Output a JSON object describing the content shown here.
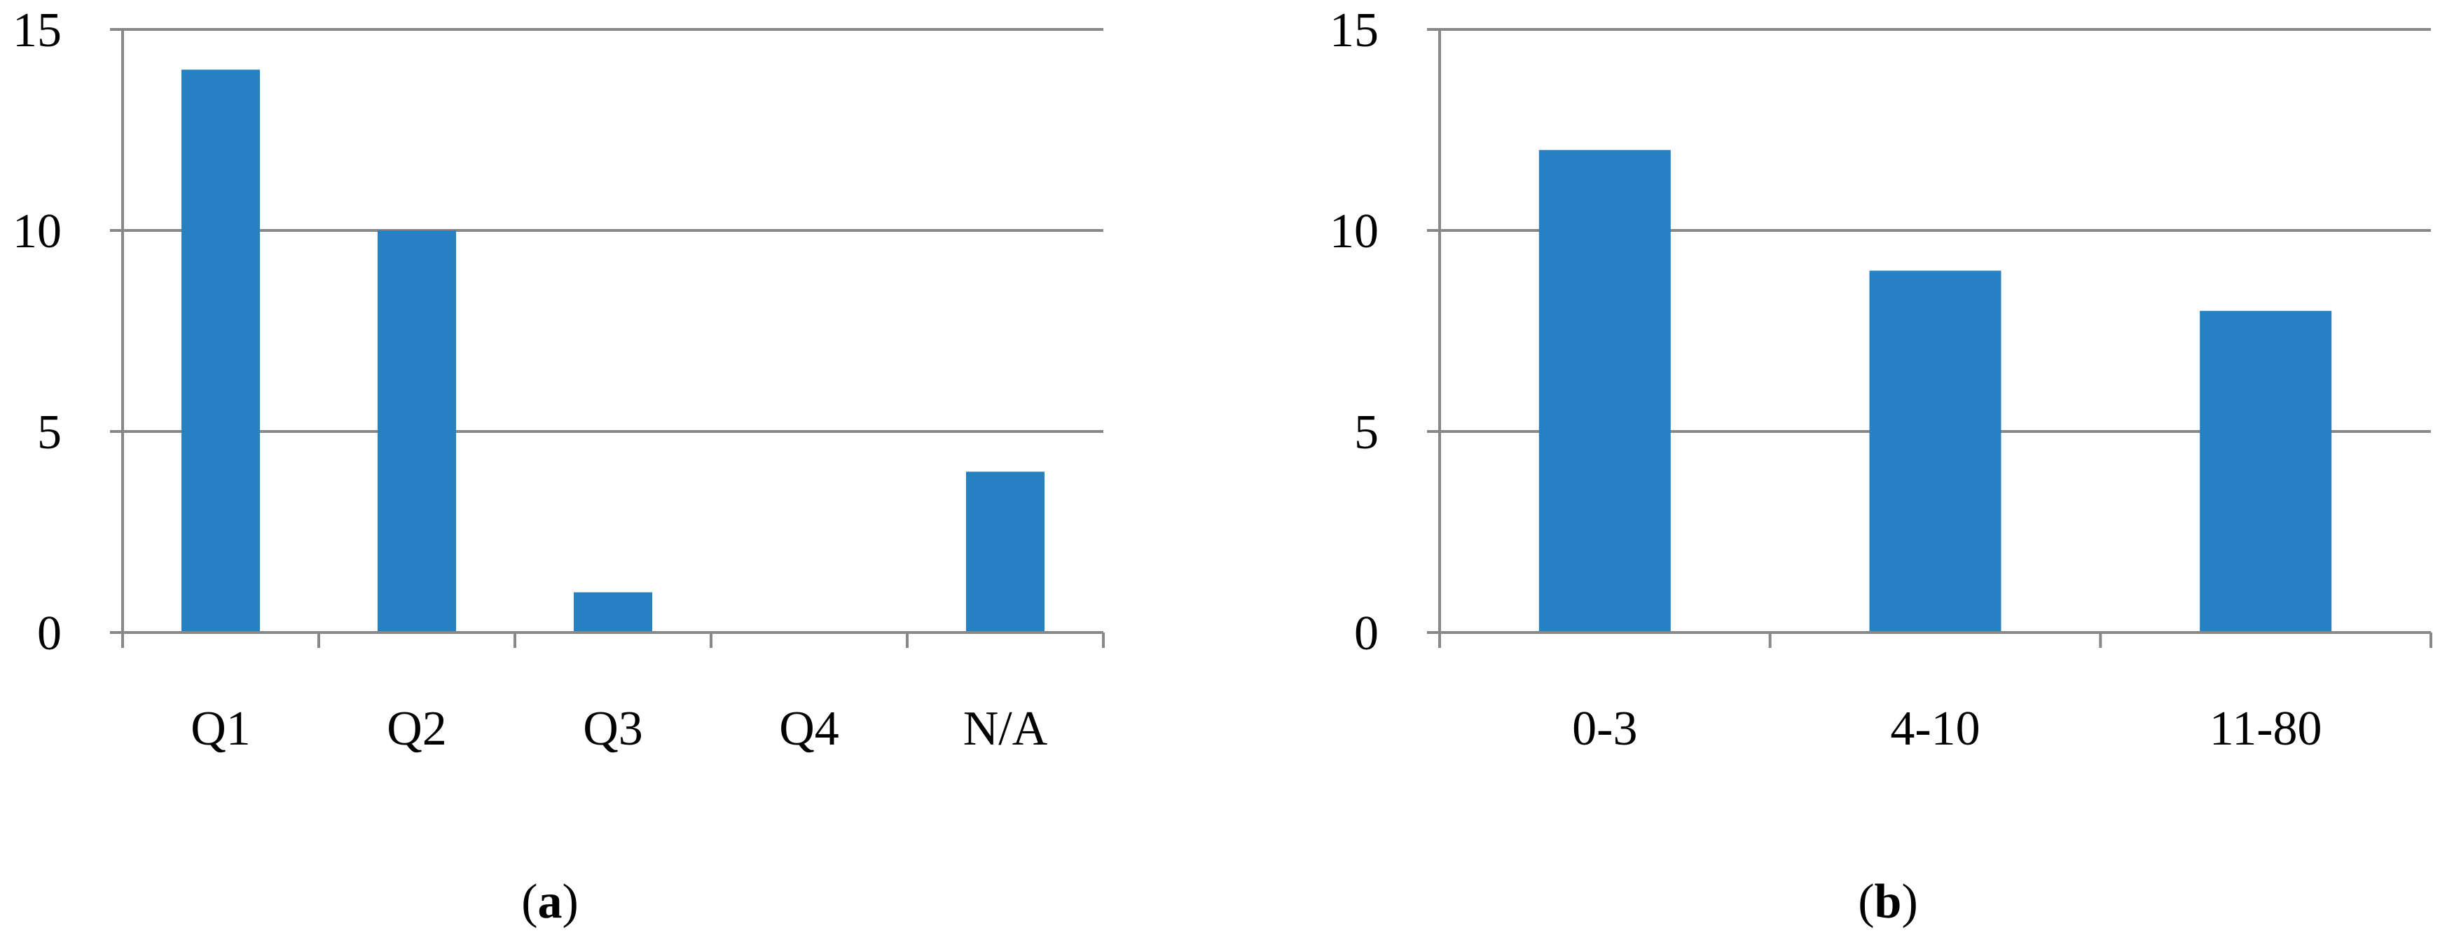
{
  "chart_data": [
    {
      "type": "bar",
      "panel_label": {
        "open": "(",
        "letter": "a",
        "close": ")"
      },
      "categories": [
        "Q1",
        "Q2",
        "Q3",
        "Q4",
        "N/A"
      ],
      "values": [
        14,
        10,
        1,
        0,
        4
      ],
      "ylim": [
        0,
        15
      ],
      "yticks": [
        0,
        5,
        10,
        15
      ],
      "grid": true,
      "bar_color": "#2681C2",
      "gridline_color": "#888888"
    },
    {
      "type": "bar",
      "panel_label": {
        "open": "(",
        "letter": "b",
        "close": ")"
      },
      "categories": [
        "0-3",
        "4-10",
        "11-80"
      ],
      "values": [
        12,
        9,
        8
      ],
      "ylim": [
        0,
        15
      ],
      "yticks": [
        0,
        5,
        10,
        15
      ],
      "grid": true,
      "bar_color": "#2681C2",
      "gridline_color": "#888888"
    }
  ]
}
